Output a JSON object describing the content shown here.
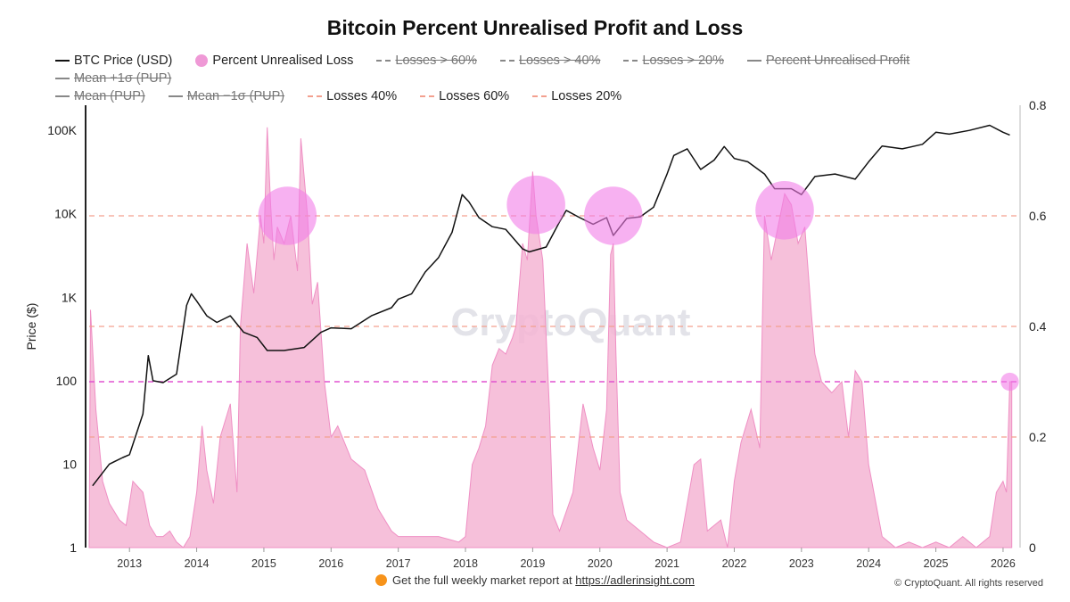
{
  "chart_data": {
    "type": "area",
    "title": "Bitcoin Percent Unrealised Profit and Loss",
    "watermark": "CryptoQuant",
    "ylabel_left": "Price ($)",
    "ylabel_right": "",
    "left_axis": {
      "scale": "log",
      "range": [
        1,
        200000
      ],
      "ticks": [
        1,
        10,
        100,
        1000,
        10000,
        100000
      ],
      "tick_labels": [
        "1",
        "10",
        "100",
        "1K",
        "10K",
        "100K"
      ]
    },
    "right_axis": {
      "scale": "linear",
      "range": [
        0,
        0.8
      ],
      "ticks": [
        0,
        0.2,
        0.4,
        0.6,
        0.8
      ],
      "tick_labels": [
        "0",
        "0.2",
        "0.4",
        "0.6",
        "0.8"
      ]
    },
    "x_axis": {
      "range": [
        2012.4,
        2026.2
      ],
      "ticks": [
        2013,
        2014,
        2015,
        2016,
        2017,
        2018,
        2019,
        2020,
        2021,
        2022,
        2023,
        2024,
        2025,
        2026
      ],
      "tick_labels": [
        "2013",
        "2014",
        "2015",
        "2016",
        "2017",
        "2018",
        "2019",
        "2020",
        "2021",
        "2022",
        "2023",
        "2024",
        "2025",
        "2026"
      ]
    },
    "legend": [
      {
        "label": "BTC Price (USD)",
        "style": "line",
        "color": "#111111",
        "disabled": false
      },
      {
        "label": "Percent Unrealised Loss",
        "style": "circle",
        "color": "#ef99d6",
        "disabled": false
      },
      {
        "label": "Losses > 60%",
        "style": "dash",
        "color": "#888888",
        "disabled": true
      },
      {
        "label": "Losses > 40%",
        "style": "dash",
        "color": "#888888",
        "disabled": true
      },
      {
        "label": "Losses > 20%",
        "style": "dash",
        "color": "#888888",
        "disabled": true
      },
      {
        "label": "Percent Unrealised Profit",
        "style": "line",
        "color": "#888888",
        "disabled": true
      },
      {
        "label": "Mean +1σ (PUP)",
        "style": "line",
        "color": "#888888",
        "disabled": true
      },
      {
        "label": "Mean (PUP)",
        "style": "line",
        "color": "#888888",
        "disabled": true
      },
      {
        "label": "Mean −1σ (PUP)",
        "style": "line",
        "color": "#888888",
        "disabled": true
      },
      {
        "label": "Losses 40%",
        "style": "dash",
        "color": "#f3a08f",
        "disabled": false
      },
      {
        "label": "Losses 60%",
        "style": "dash",
        "color": "#f3a08f",
        "disabled": false
      },
      {
        "label": "Losses 20%",
        "style": "dash",
        "color": "#f3a08f",
        "disabled": false
      }
    ],
    "threshold_lines": [
      {
        "name": "Losses 60%",
        "value": 0.6,
        "color": "#f3a08f"
      },
      {
        "name": "Losses 40%",
        "value": 0.4,
        "color": "#f3a08f"
      },
      {
        "name": "Losses 20%",
        "value": 0.2,
        "color": "#f3a08f"
      },
      {
        "name": "current-level",
        "value": 0.3,
        "color": "#e052d0"
      }
    ],
    "series": [
      {
        "name": "BTC Price (USD)",
        "axis": "left",
        "color": "#111111",
        "x": [
          2012.45,
          2012.7,
          2012.9,
          2013.0,
          2013.2,
          2013.28,
          2013.35,
          2013.5,
          2013.7,
          2013.85,
          2013.92,
          2014.0,
          2014.15,
          2014.3,
          2014.5,
          2014.7,
          2014.9,
          2015.05,
          2015.3,
          2015.6,
          2015.85,
          2016.0,
          2016.3,
          2016.6,
          2016.9,
          2017.0,
          2017.2,
          2017.4,
          2017.6,
          2017.8,
          2017.95,
          2018.05,
          2018.2,
          2018.4,
          2018.6,
          2018.85,
          2018.95,
          2019.2,
          2019.4,
          2019.5,
          2019.7,
          2019.9,
          2020.1,
          2020.2,
          2020.4,
          2020.6,
          2020.8,
          2021.0,
          2021.1,
          2021.3,
          2021.5,
          2021.7,
          2021.85,
          2022.0,
          2022.2,
          2022.45,
          2022.6,
          2022.85,
          2023.0,
          2023.2,
          2023.5,
          2023.8,
          2024.0,
          2024.2,
          2024.5,
          2024.8,
          2024.9,
          2025.0,
          2025.2,
          2025.5,
          2025.8,
          2026.0,
          2026.1
        ],
        "values": [
          5.5,
          10,
          12,
          13,
          40,
          200,
          100,
          95,
          120,
          800,
          1100,
          900,
          600,
          500,
          600,
          380,
          330,
          230,
          230,
          250,
          380,
          430,
          420,
          600,
          750,
          950,
          1100,
          2000,
          3000,
          6000,
          17000,
          14000,
          9000,
          7000,
          6500,
          3800,
          3500,
          4000,
          8000,
          11000,
          9000,
          7500,
          9000,
          5500,
          8800,
          9200,
          12000,
          30000,
          50000,
          60000,
          34000,
          44000,
          64000,
          46000,
          42000,
          30000,
          20000,
          20000,
          17000,
          28000,
          30000,
          26000,
          42000,
          65000,
          60000,
          68000,
          80000,
          95000,
          90000,
          100000,
          115000,
          95000,
          88000
        ]
      },
      {
        "name": "Percent Unrealised Loss",
        "axis": "right",
        "color": "#ef99d6",
        "x": [
          2012.4,
          2012.42,
          2012.5,
          2012.6,
          2012.7,
          2012.85,
          2012.95,
          2013.05,
          2013.2,
          2013.3,
          2013.4,
          2013.5,
          2013.6,
          2013.7,
          2013.8,
          2013.9,
          2014.0,
          2014.08,
          2014.15,
          2014.25,
          2014.35,
          2014.5,
          2014.6,
          2014.65,
          2014.75,
          2014.85,
          2014.95,
          2015.0,
          2015.05,
          2015.1,
          2015.15,
          2015.2,
          2015.3,
          2015.4,
          2015.5,
          2015.55,
          2015.65,
          2015.72,
          2015.8,
          2015.9,
          2016.0,
          2016.1,
          2016.3,
          2016.5,
          2016.7,
          2016.9,
          2017.0,
          2017.3,
          2017.6,
          2017.9,
          2018.0,
          2018.1,
          2018.2,
          2018.3,
          2018.4,
          2018.5,
          2018.6,
          2018.7,
          2018.75,
          2018.85,
          2018.92,
          2019.0,
          2019.05,
          2019.15,
          2019.25,
          2019.3,
          2019.4,
          2019.6,
          2019.75,
          2019.9,
          2020.0,
          2020.1,
          2020.16,
          2020.2,
          2020.24,
          2020.3,
          2020.4,
          2020.6,
          2020.8,
          2021.0,
          2021.2,
          2021.4,
          2021.5,
          2021.6,
          2021.8,
          2021.9,
          2022.0,
          2022.1,
          2022.25,
          2022.38,
          2022.45,
          2022.55,
          2022.65,
          2022.75,
          2022.85,
          2022.95,
          2023.05,
          2023.15,
          2023.2,
          2023.3,
          2023.45,
          2023.6,
          2023.7,
          2023.8,
          2023.9,
          2024.0,
          2024.2,
          2024.4,
          2024.6,
          2024.8,
          2025.0,
          2025.2,
          2025.4,
          2025.6,
          2025.8,
          2025.9,
          2026.0,
          2026.05,
          2026.1,
          2026.13
        ],
        "values": [
          0.0,
          0.43,
          0.25,
          0.12,
          0.08,
          0.05,
          0.04,
          0.12,
          0.1,
          0.04,
          0.02,
          0.02,
          0.03,
          0.01,
          0.0,
          0.02,
          0.1,
          0.22,
          0.14,
          0.08,
          0.2,
          0.26,
          0.1,
          0.4,
          0.55,
          0.46,
          0.6,
          0.55,
          0.76,
          0.62,
          0.52,
          0.58,
          0.55,
          0.6,
          0.5,
          0.74,
          0.6,
          0.44,
          0.48,
          0.3,
          0.2,
          0.22,
          0.16,
          0.14,
          0.07,
          0.03,
          0.02,
          0.02,
          0.02,
          0.01,
          0.02,
          0.15,
          0.18,
          0.22,
          0.33,
          0.36,
          0.35,
          0.38,
          0.4,
          0.55,
          0.52,
          0.68,
          0.6,
          0.52,
          0.25,
          0.06,
          0.03,
          0.1,
          0.26,
          0.18,
          0.14,
          0.25,
          0.53,
          0.55,
          0.35,
          0.1,
          0.05,
          0.03,
          0.01,
          0.0,
          0.01,
          0.15,
          0.16,
          0.03,
          0.05,
          0.0,
          0.12,
          0.19,
          0.25,
          0.18,
          0.6,
          0.52,
          0.58,
          0.64,
          0.62,
          0.55,
          0.58,
          0.42,
          0.35,
          0.3,
          0.28,
          0.3,
          0.2,
          0.32,
          0.3,
          0.15,
          0.02,
          0.0,
          0.01,
          0.0,
          0.01,
          0.0,
          0.02,
          0.0,
          0.02,
          0.1,
          0.12,
          0.1,
          0.3,
          0.3
        ]
      }
    ],
    "highlight_circles": [
      {
        "x": 2015.35,
        "y": 0.6,
        "r_years": 0.58
      },
      {
        "x": 2019.05,
        "y": 0.62,
        "r_years": 0.58
      },
      {
        "x": 2020.2,
        "y": 0.6,
        "r_years": 0.58
      },
      {
        "x": 2022.75,
        "y": 0.61,
        "r_years": 0.58
      },
      {
        "x": 2026.1,
        "y": 0.3,
        "r_years": 0.18
      }
    ]
  },
  "footer": {
    "text": "Get the full weekly market report at",
    "link": "https://adlerinsight.com",
    "copyright": "© CryptoQuant. All rights reserved"
  }
}
